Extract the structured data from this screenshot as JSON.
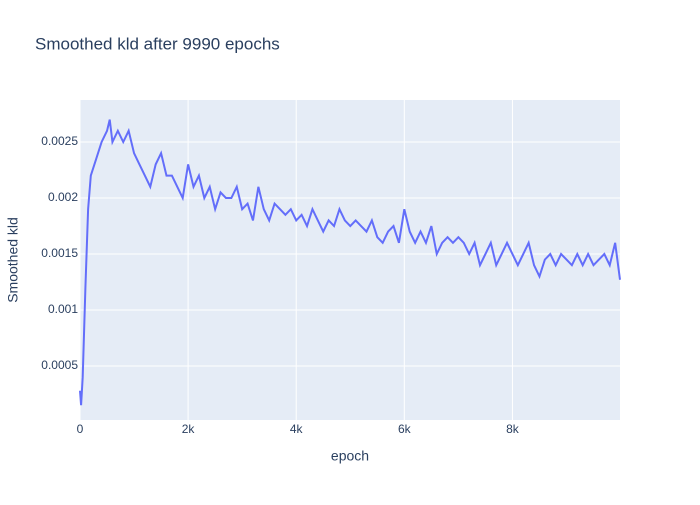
{
  "chart_data": {
    "type": "line",
    "title": "Smoothed kld after 9990 epochs",
    "x_label": "epoch",
    "y_label": "Smoothed kld",
    "x": [
      0,
      20,
      50,
      100,
      150,
      200,
      300,
      400,
      500,
      550,
      600,
      700,
      800,
      900,
      1000,
      1100,
      1200,
      1300,
      1400,
      1500,
      1600,
      1700,
      1800,
      1900,
      2000,
      2100,
      2200,
      2300,
      2400,
      2500,
      2600,
      2700,
      2800,
      2900,
      3000,
      3100,
      3200,
      3300,
      3400,
      3500,
      3600,
      3700,
      3800,
      3900,
      4000,
      4100,
      4200,
      4300,
      4400,
      4500,
      4600,
      4700,
      4800,
      4900,
      5000,
      5100,
      5200,
      5300,
      5400,
      5500,
      5600,
      5700,
      5800,
      5900,
      6000,
      6100,
      6200,
      6300,
      6400,
      6500,
      6600,
      6700,
      6800,
      6900,
      7000,
      7100,
      7200,
      7300,
      7400,
      7500,
      7600,
      7700,
      7800,
      7900,
      8000,
      8100,
      8200,
      8300,
      8400,
      8500,
      8600,
      8700,
      8800,
      8900,
      9000,
      9100,
      9200,
      9300,
      9400,
      9500,
      9600,
      9700,
      9800,
      9900,
      9990
    ],
    "values": [
      0.00028,
      0.00015,
      0.0004,
      0.0012,
      0.0019,
      0.0022,
      0.00235,
      0.0025,
      0.0026,
      0.0027,
      0.0025,
      0.0026,
      0.0025,
      0.0026,
      0.0024,
      0.0023,
      0.0022,
      0.0021,
      0.0023,
      0.0024,
      0.0022,
      0.0022,
      0.0021,
      0.002,
      0.0023,
      0.0021,
      0.0022,
      0.002,
      0.0021,
      0.0019,
      0.00205,
      0.002,
      0.002,
      0.0021,
      0.0019,
      0.00195,
      0.0018,
      0.0021,
      0.0019,
      0.0018,
      0.00195,
      0.0019,
      0.00185,
      0.0019,
      0.0018,
      0.00185,
      0.00175,
      0.0019,
      0.0018,
      0.0017,
      0.0018,
      0.00175,
      0.0019,
      0.0018,
      0.00175,
      0.0018,
      0.00175,
      0.0017,
      0.0018,
      0.00165,
      0.0016,
      0.0017,
      0.00175,
      0.0016,
      0.0019,
      0.0017,
      0.0016,
      0.0017,
      0.0016,
      0.00175,
      0.0015,
      0.0016,
      0.00165,
      0.0016,
      0.00165,
      0.0016,
      0.0015,
      0.0016,
      0.0014,
      0.0015,
      0.0016,
      0.0014,
      0.0015,
      0.0016,
      0.0015,
      0.0014,
      0.0015,
      0.0016,
      0.0014,
      0.0013,
      0.00145,
      0.0015,
      0.0014,
      0.0015,
      0.00145,
      0.0014,
      0.0015,
      0.0014,
      0.0015,
      0.0014,
      0.00145,
      0.0015,
      0.0014,
      0.0016,
      0.00127
    ],
    "color": "#636efa",
    "xlim": [
      0,
      9990
    ],
    "ylim": [
      1.8e-05,
      0.002875
    ],
    "xticks": [
      0,
      {
        "value": 2000,
        "label": "2k"
      },
      {
        "value": 4000,
        "label": "4k"
      },
      {
        "value": 6000,
        "label": "6k"
      },
      {
        "value": 8000,
        "label": "8k"
      }
    ],
    "yticks": [
      0.0005,
      0.001,
      0.0015,
      0.002,
      0.0025
    ],
    "grid": true
  }
}
